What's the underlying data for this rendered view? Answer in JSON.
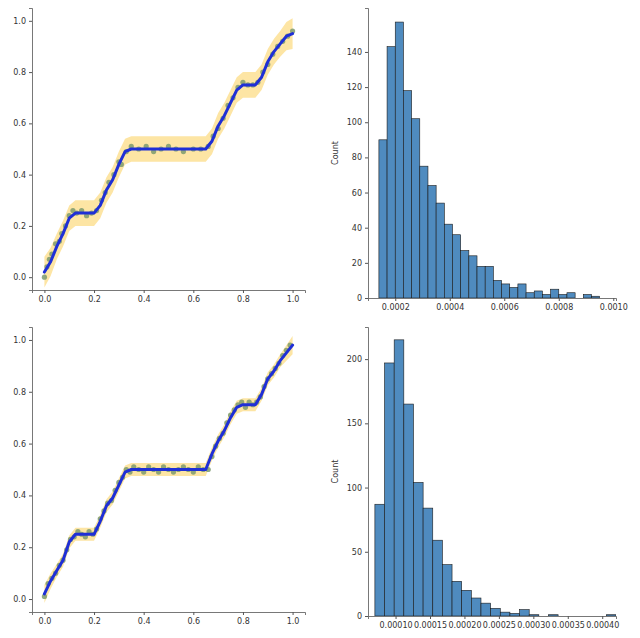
{
  "chart_data": [
    {
      "type": "line",
      "xlim": [
        -0.05,
        1.05
      ],
      "ylim": [
        -0.05,
        1.05
      ],
      "xticks": [
        {
          "value": 0,
          "label": "0.0"
        },
        0.2,
        0.4,
        0.6,
        0.8,
        {
          "value": 1,
          "label": "1.0"
        }
      ],
      "yticks": [
        {
          "value": 0,
          "label": "0.0"
        },
        0.2,
        0.4,
        0.6,
        0.8,
        {
          "value": 1,
          "label": "1.0"
        }
      ],
      "series": [
        {
          "type": "line",
          "color": "#1f2fd6",
          "x": [
            0,
            0.025,
            0.05,
            0.075,
            0.1,
            0.125,
            0.15,
            0.175,
            0.2,
            0.225,
            0.25,
            0.275,
            0.3,
            0.325,
            0.35,
            0.375,
            0.4,
            0.425,
            0.45,
            0.475,
            0.5,
            0.525,
            0.55,
            0.575,
            0.6,
            0.625,
            0.65,
            0.675,
            0.7,
            0.725,
            0.75,
            0.775,
            0.8,
            0.825,
            0.85,
            0.875,
            0.9,
            0.925,
            0.95,
            0.975,
            1
          ],
          "values": [
            0.02,
            0.06,
            0.12,
            0.17,
            0.23,
            0.25,
            0.25,
            0.25,
            0.25,
            0.28,
            0.34,
            0.38,
            0.44,
            0.49,
            0.5,
            0.5,
            0.5,
            0.5,
            0.5,
            0.5,
            0.5,
            0.5,
            0.5,
            0.5,
            0.5,
            0.5,
            0.5,
            0.53,
            0.59,
            0.63,
            0.68,
            0.73,
            0.75,
            0.75,
            0.75,
            0.78,
            0.84,
            0.88,
            0.91,
            0.94,
            0.95
          ],
          "error": [
            0.06,
            0.055,
            0.05,
            0.05,
            0.05,
            0.05,
            0.05,
            0.05,
            0.05,
            0.05,
            0.05,
            0.05,
            0.05,
            0.05,
            0.05,
            0.05,
            0.05,
            0.05,
            0.05,
            0.05,
            0.05,
            0.05,
            0.05,
            0.05,
            0.05,
            0.05,
            0.05,
            0.05,
            0.05,
            0.05,
            0.05,
            0.05,
            0.05,
            0.05,
            0.05,
            0.05,
            0.05,
            0.05,
            0.05,
            0.055,
            0.06
          ]
        },
        {
          "type": "scatter",
          "color": "#7d9a6e",
          "x": [
            0,
            0.01,
            0.02,
            0.03,
            0.045,
            0.06,
            0.07,
            0.085,
            0.1,
            0.115,
            0.13,
            0.15,
            0.17,
            0.19,
            0.21,
            0.23,
            0.245,
            0.26,
            0.28,
            0.3,
            0.31,
            0.33,
            0.35,
            0.38,
            0.41,
            0.44,
            0.47,
            0.5,
            0.53,
            0.56,
            0.6,
            0.63,
            0.66,
            0.68,
            0.7,
            0.72,
            0.74,
            0.76,
            0.78,
            0.8,
            0.82,
            0.84,
            0.86,
            0.88,
            0.9,
            0.92,
            0.94,
            0.96,
            0.98,
            1
          ],
          "values": [
            0,
            0.04,
            0.07,
            0.09,
            0.13,
            0.14,
            0.17,
            0.2,
            0.24,
            0.26,
            0.25,
            0.26,
            0.24,
            0.25,
            0.26,
            0.3,
            0.33,
            0.37,
            0.4,
            0.45,
            0.44,
            0.49,
            0.51,
            0.5,
            0.51,
            0.49,
            0.5,
            0.51,
            0.5,
            0.49,
            0.5,
            0.5,
            0.51,
            0.55,
            0.58,
            0.62,
            0.67,
            0.7,
            0.74,
            0.76,
            0.75,
            0.75,
            0.76,
            0.8,
            0.83,
            0.87,
            0.9,
            0.92,
            0.94,
            0.96
          ]
        }
      ]
    },
    {
      "type": "histogram",
      "ylabel": "Count",
      "color": "#4f8bbf",
      "xlim": [
        0.0001,
        0.00101
      ],
      "ylim": [
        0,
        165
      ],
      "xticks": [
        0.0002,
        0.0004,
        0.0006,
        0.0008,
        {
          "value": 0.001,
          "label": "0.0010"
        }
      ],
      "yticks": [
        0,
        20,
        40,
        60,
        80,
        100,
        120,
        140
      ],
      "bins": [
        0.00014,
        0.00017,
        0.0002,
        0.00023,
        0.00026,
        0.00029,
        0.00032,
        0.00035,
        0.00038,
        0.00041,
        0.00044,
        0.00047,
        0.0005,
        0.00053,
        0.00056,
        0.00059,
        0.00062,
        0.00065,
        0.00068,
        0.00071,
        0.00074,
        0.00077,
        0.0008,
        0.00083,
        0.00086,
        0.00089,
        0.00092,
        0.00095
      ],
      "values": [
        90,
        143,
        157,
        118,
        102,
        75,
        64,
        54,
        42,
        36,
        27,
        24,
        18,
        18,
        10,
        8,
        6,
        8,
        3,
        4,
        2,
        5,
        2,
        3,
        0,
        2,
        1
      ]
    },
    {
      "type": "line",
      "xlim": [
        -0.05,
        1.05
      ],
      "ylim": [
        -0.05,
        1.05
      ],
      "xticks": [
        {
          "value": 0,
          "label": "0.0"
        },
        0.2,
        0.4,
        0.6,
        0.8,
        {
          "value": 1,
          "label": "1.0"
        }
      ],
      "yticks": [
        {
          "value": 0,
          "label": "0.0"
        },
        0.2,
        0.4,
        0.6,
        0.8,
        {
          "value": 1,
          "label": "1.0"
        }
      ],
      "series": [
        {
          "type": "line",
          "color": "#1f2fd6",
          "x": [
            0,
            0.025,
            0.05,
            0.075,
            0.1,
            0.125,
            0.15,
            0.175,
            0.2,
            0.225,
            0.25,
            0.275,
            0.3,
            0.325,
            0.35,
            0.375,
            0.4,
            0.425,
            0.45,
            0.475,
            0.5,
            0.525,
            0.55,
            0.575,
            0.6,
            0.625,
            0.65,
            0.675,
            0.7,
            0.725,
            0.75,
            0.775,
            0.8,
            0.825,
            0.85,
            0.875,
            0.9,
            0.925,
            0.95,
            0.975,
            1
          ],
          "values": [
            0.02,
            0.07,
            0.11,
            0.15,
            0.22,
            0.25,
            0.25,
            0.25,
            0.25,
            0.3,
            0.36,
            0.39,
            0.44,
            0.49,
            0.5,
            0.5,
            0.5,
            0.5,
            0.5,
            0.5,
            0.5,
            0.5,
            0.5,
            0.5,
            0.5,
            0.5,
            0.5,
            0.56,
            0.61,
            0.65,
            0.7,
            0.74,
            0.75,
            0.75,
            0.75,
            0.79,
            0.85,
            0.88,
            0.92,
            0.95,
            0.98
          ],
          "error": [
            0.035,
            0.03,
            0.025,
            0.025,
            0.025,
            0.025,
            0.025,
            0.025,
            0.025,
            0.025,
            0.025,
            0.025,
            0.025,
            0.025,
            0.025,
            0.025,
            0.025,
            0.025,
            0.025,
            0.025,
            0.025,
            0.025,
            0.025,
            0.025,
            0.025,
            0.025,
            0.025,
            0.025,
            0.025,
            0.025,
            0.025,
            0.025,
            0.025,
            0.025,
            0.025,
            0.025,
            0.025,
            0.025,
            0.025,
            0.03,
            0.035
          ]
        },
        {
          "type": "scatter",
          "color": "#7d9a6e",
          "x": [
            0,
            0.015,
            0.03,
            0.045,
            0.06,
            0.075,
            0.09,
            0.105,
            0.12,
            0.135,
            0.15,
            0.165,
            0.18,
            0.195,
            0.21,
            0.225,
            0.24,
            0.255,
            0.27,
            0.285,
            0.3,
            0.315,
            0.33,
            0.345,
            0.36,
            0.38,
            0.4,
            0.42,
            0.44,
            0.46,
            0.48,
            0.5,
            0.52,
            0.54,
            0.56,
            0.58,
            0.6,
            0.62,
            0.64,
            0.66,
            0.675,
            0.69,
            0.705,
            0.72,
            0.735,
            0.75,
            0.765,
            0.78,
            0.795,
            0.81,
            0.825,
            0.84,
            0.855,
            0.87,
            0.885,
            0.9,
            0.915,
            0.93,
            0.945,
            0.96,
            0.975,
            0.99
          ],
          "values": [
            0.01,
            0.06,
            0.08,
            0.1,
            0.13,
            0.15,
            0.19,
            0.23,
            0.24,
            0.26,
            0.25,
            0.24,
            0.26,
            0.25,
            0.27,
            0.31,
            0.34,
            0.37,
            0.38,
            0.42,
            0.45,
            0.47,
            0.5,
            0.49,
            0.51,
            0.5,
            0.49,
            0.51,
            0.5,
            0.49,
            0.51,
            0.5,
            0.49,
            0.5,
            0.51,
            0.5,
            0.49,
            0.51,
            0.5,
            0.5,
            0.55,
            0.59,
            0.62,
            0.64,
            0.68,
            0.71,
            0.73,
            0.75,
            0.76,
            0.74,
            0.76,
            0.75,
            0.76,
            0.78,
            0.82,
            0.85,
            0.87,
            0.89,
            0.91,
            0.94,
            0.96,
            0.98
          ]
        }
      ]
    },
    {
      "type": "histogram",
      "ylabel": "Count",
      "color": "#4f8bbf",
      "xlim": [
        6e-05,
        0.00042
      ],
      "ylim": [
        0,
        225
      ],
      "xticks": [
        {
          "value": 0.0001,
          "label": "0.00010"
        },
        {
          "value": 0.00015,
          "label": "0.00015"
        },
        {
          "value": 0.0002,
          "label": "0.00020"
        },
        {
          "value": 0.00025,
          "label": "0.00025"
        },
        {
          "value": 0.0003,
          "label": "0.00030"
        },
        {
          "value": 0.00035,
          "label": "0.00035"
        },
        {
          "value": 0.0004,
          "label": "0.00040"
        }
      ],
      "yticks": [
        0,
        50,
        100,
        150,
        200
      ],
      "bins": [
        7e-05,
        8.4e-05,
        9.8e-05,
        0.000112,
        0.000126,
        0.00014,
        0.000154,
        0.000168,
        0.000182,
        0.000196,
        0.00021,
        0.000224,
        0.000238,
        0.000252,
        0.000266,
        0.00028,
        0.000294,
        0.000308,
        0.000322,
        0.000336,
        0.00035,
        0.000364,
        0.000378,
        0.000392,
        0.000406,
        0.00042
      ],
      "values": [
        87,
        197,
        215,
        165,
        104,
        84,
        59,
        40,
        27,
        20,
        14,
        10,
        6,
        3,
        2,
        5,
        1,
        0,
        1,
        0,
        0,
        0,
        0,
        0,
        1
      ]
    }
  ]
}
